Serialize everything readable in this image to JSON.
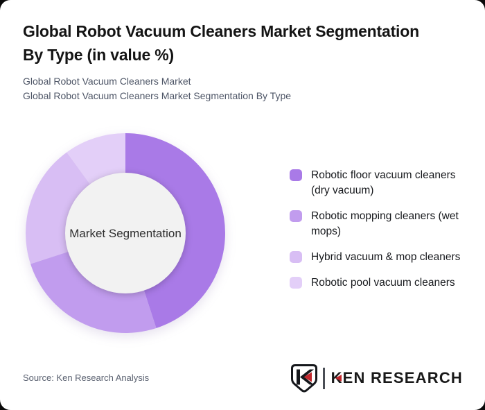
{
  "page": {
    "background": "#0a0a0a",
    "card_background": "#ffffff"
  },
  "header": {
    "title": "Global Robot Vacuum Cleaners Market Segmentation\nBy Type (in value %)",
    "subtitle_line_1": "Global Robot Vacuum Cleaners Market",
    "subtitle_line_2": "Global Robot Vacuum Cleaners Market Segmentation By Type"
  },
  "chart_data": {
    "type": "pie",
    "variant": "donut",
    "title": "Global Robot Vacuum Cleaners Market Segmentation By Type (in value %)",
    "center_label": "Market Segmentation",
    "categories": [
      "Robotic floor vacuum cleaners (dry vacuum)",
      "Robotic mopping cleaners (wet mops)",
      "Hybrid vacuum & mop cleaners",
      "Robotic pool vacuum cleaners"
    ],
    "values": [
      45,
      25,
      20,
      10
    ],
    "values_estimated": true,
    "values_unit": "% of market value",
    "colors": [
      "#a97ae7",
      "#c19cee",
      "#d8bef4",
      "#e3cff8"
    ],
    "start_angle_deg": 0,
    "direction": "clockwise",
    "inner_radius_ratio": 0.6,
    "hole_color": "#f2f2f2",
    "legend_position": "right",
    "grid": false
  },
  "legend": {
    "items": [
      {
        "label": "Robotic floor vacuum cleaners (dry vacuum)",
        "color": "#a97ae7"
      },
      {
        "label": "Robotic mopping cleaners (wet mops)",
        "color": "#c19cee"
      },
      {
        "label": "Hybrid vacuum & mop cleaners",
        "color": "#d8bef4"
      },
      {
        "label": "Robotic pool vacuum cleaners",
        "color": "#e3cff8"
      }
    ]
  },
  "footer": {
    "source": "Source: Ken Research Analysis",
    "logo": {
      "brand": "KEN RESEARCH",
      "accent_color": "#c1272d",
      "text_color": "#191919"
    }
  }
}
